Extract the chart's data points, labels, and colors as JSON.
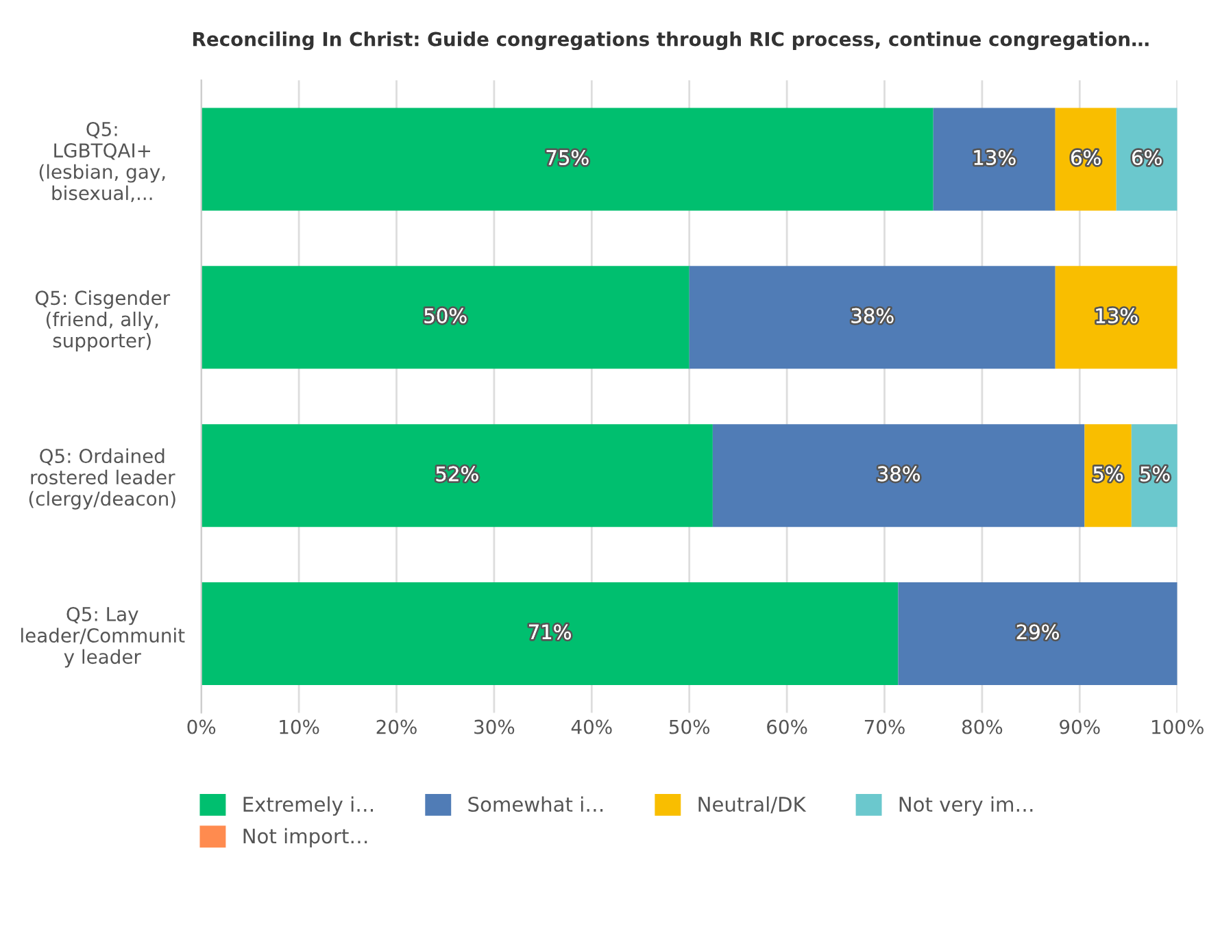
{
  "chart_data": {
    "type": "bar",
    "orientation": "horizontal",
    "stacked": true,
    "title": "Reconciling In Christ: Guide congregations through RIC process, continue congregation…",
    "categories": [
      "Q5:\nLGBTQAI+\n(lesbian, gay,\nbisexual,...",
      "Q5: Cisgender\n(friend, ally,\nsupporter)",
      "Q5: Ordained\nrostered leader\n(clergy/deacon)",
      "Q5: Lay\nleader/Communit\ny leader"
    ],
    "series": [
      {
        "name": "Extremely i…",
        "color": "#00bf6f",
        "values": [
          75,
          50,
          52.4,
          71.4
        ],
        "value_labels": [
          "75%",
          "50%",
          "52%",
          "71%"
        ]
      },
      {
        "name": "Somewhat i…",
        "color": "#507cb6",
        "values": [
          12.5,
          37.5,
          38.1,
          28.6
        ],
        "value_labels": [
          "13%",
          "38%",
          "38%",
          "29%"
        ]
      },
      {
        "name": "Neutral/DK",
        "color": "#f9be00",
        "values": [
          6.25,
          12.5,
          4.8,
          null
        ],
        "value_labels": [
          "6%",
          "13%",
          "5%",
          null
        ]
      },
      {
        "name": "Not very im…",
        "color": "#6bc8cd",
        "values": [
          6.25,
          null,
          4.8,
          null
        ],
        "value_labels": [
          "6%",
          null,
          "5%",
          null
        ]
      },
      {
        "name": "Not import…",
        "color": "#ff8b4f",
        "values": [
          null,
          null,
          null,
          null
        ],
        "value_labels": [
          null,
          null,
          null,
          null
        ]
      }
    ],
    "xlim": [
      0,
      100
    ],
    "xticks": [
      {
        "value": 0,
        "label": "0%"
      },
      {
        "value": 10,
        "label": "10%"
      },
      {
        "value": 20,
        "label": "20%"
      },
      {
        "value": 30,
        "label": "30%"
      },
      {
        "value": 40,
        "label": "40%"
      },
      {
        "value": 50,
        "label": "50%"
      },
      {
        "value": 60,
        "label": "60%"
      },
      {
        "value": 70,
        "label": "70%"
      },
      {
        "value": 80,
        "label": "80%"
      },
      {
        "value": 90,
        "label": "90%"
      },
      {
        "value": 100,
        "label": "100%"
      }
    ],
    "grid": "x",
    "legend": "bottom"
  }
}
